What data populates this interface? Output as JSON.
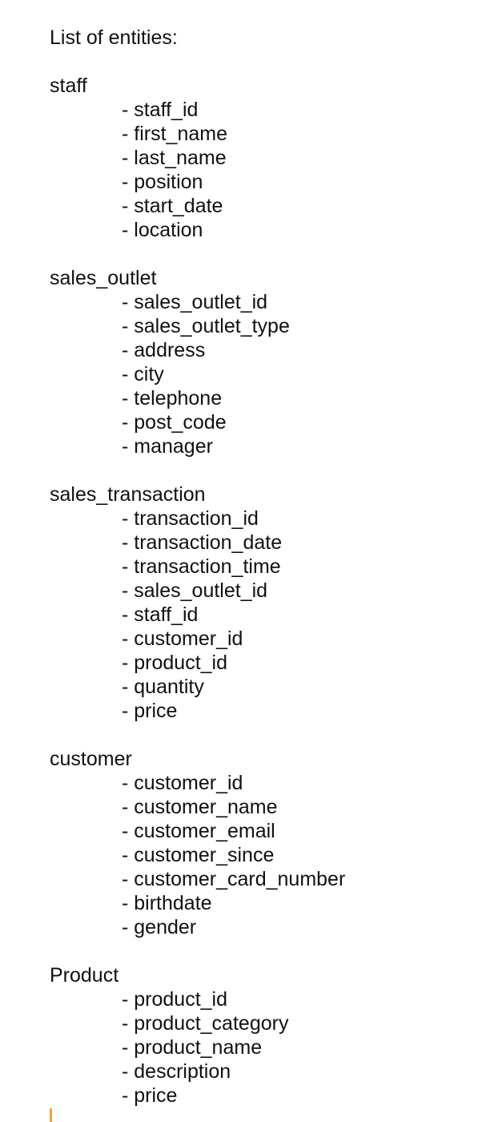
{
  "document": {
    "heading": "List of entities:",
    "entities": [
      {
        "name": "staff",
        "attributes": [
          "- staff_id",
          "- first_name",
          "- last_name",
          "- position",
          "- start_date",
          "- location"
        ]
      },
      {
        "name": "sales_outlet",
        "attributes": [
          "- sales_outlet_id",
          "- sales_outlet_type",
          "- address",
          "- city",
          "- telephone",
          "- post_code",
          "- manager"
        ]
      },
      {
        "name": "sales_transaction",
        "attributes": [
          "- transaction_id",
          "- transaction_date",
          "- transaction_time",
          "- sales_outlet_id",
          "- staff_id",
          "- customer_id",
          "- product_id",
          "- quantity",
          "- price"
        ]
      },
      {
        "name": "customer",
        "attributes": [
          "- customer_id",
          "- customer_name",
          "- customer_email",
          "- customer_since",
          "- customer_card_number",
          "- birthdate",
          "- gender"
        ]
      },
      {
        "name": "Product",
        "attributes": [
          "- product_id",
          "- product_category",
          "- product_name",
          "- description",
          "- price"
        ]
      }
    ]
  },
  "colors": {
    "text": "#111111",
    "background": "#ffffff",
    "cursor": "#f0a52b"
  }
}
